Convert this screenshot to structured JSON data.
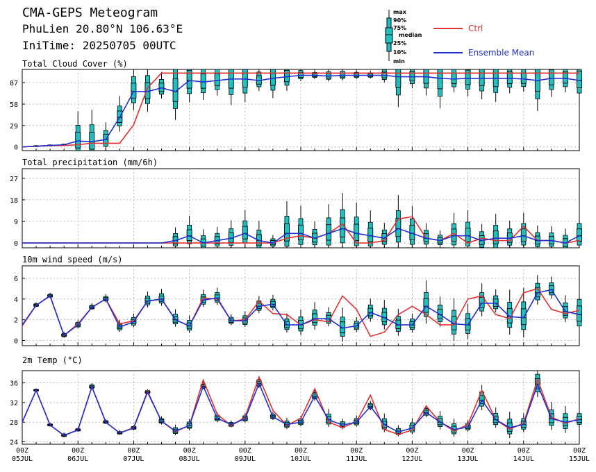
{
  "header": {
    "title": "CMA-GEPS Meteogram",
    "location": "PhuLien 20.80°N 106.63°E",
    "init_time": "IniTime: 20250705 00UTC"
  },
  "legend": {
    "box_labels": [
      "max",
      "90%",
      "75%",
      "median",
      "25%",
      "10%",
      "min"
    ],
    "ctrl_label": "Ctrl",
    "mean_label": "Ensemble Mean",
    "ctrl_color": "#e03030",
    "mean_color": "#2030d0",
    "box_fill": "#20c0c0"
  },
  "x_axis": {
    "tick_labels": [
      {
        "top": "00Z",
        "bottom": "05JUL"
      },
      {
        "top": "00Z",
        "bottom": "06JUL"
      },
      {
        "top": "00Z",
        "bottom": "07JUL"
      },
      {
        "top": "00Z",
        "bottom": "08JUL"
      },
      {
        "top": "00Z",
        "bottom": "09JUL"
      },
      {
        "top": "00Z",
        "bottom": "10JUL"
      },
      {
        "top": "00Z",
        "bottom": "11JUL"
      },
      {
        "top": "00Z",
        "bottom": "12JUL"
      },
      {
        "top": "00Z",
        "bottom": "13JUL"
      },
      {
        "top": "00Z",
        "bottom": "14JUL"
      },
      {
        "top": "00Z",
        "bottom": "15JUL"
      }
    ]
  },
  "chart_data": [
    {
      "type": "line",
      "title": "Total Cloud Cover (%)",
      "step_hours": 6,
      "ylim": [
        -5,
        105
      ],
      "yticks": [
        0,
        29,
        58,
        87
      ],
      "grid": true,
      "series": [
        {
          "name": "Ctrl",
          "values": [
            0,
            1,
            2,
            2,
            3,
            5,
            5,
            5,
            30,
            80,
            100,
            100,
            100,
            100,
            100,
            100,
            100,
            100,
            100,
            100,
            100,
            100,
            100,
            100,
            100,
            100,
            100,
            100,
            100,
            100,
            100,
            100,
            100,
            100,
            100,
            100,
            100,
            100,
            100,
            100,
            100
          ]
        },
        {
          "name": "Ensemble Mean",
          "values": [
            0,
            1,
            2,
            3,
            8,
            7,
            10,
            40,
            75,
            75,
            80,
            75,
            90,
            88,
            90,
            92,
            92,
            90,
            93,
            95,
            97,
            97,
            96,
            97,
            97,
            97,
            97,
            95,
            95,
            95,
            93,
            92,
            93,
            93,
            93,
            93,
            92,
            90,
            93,
            93,
            90
          ]
        }
      ]
    },
    {
      "type": "line",
      "title": "Total precipitation (mm/6h)",
      "step_hours": 6,
      "ylim": [
        -2,
        31
      ],
      "yticks": [
        0,
        9,
        18,
        27
      ],
      "grid": true,
      "series": [
        {
          "name": "Ctrl",
          "values": [
            0,
            0,
            0,
            0,
            0,
            0,
            0,
            0,
            0,
            0,
            0,
            0,
            0,
            0,
            0,
            0,
            0,
            0,
            0,
            2,
            3,
            2,
            4,
            8,
            0,
            0,
            1,
            10,
            11,
            2,
            1,
            4,
            0,
            2,
            1,
            1,
            7,
            1,
            1,
            0,
            1
          ]
        },
        {
          "name": "Ensemble Mean",
          "values": [
            0,
            0,
            0,
            0,
            0,
            0,
            0,
            0,
            0,
            0,
            0,
            1,
            3,
            0,
            1,
            2,
            4,
            1,
            0,
            4,
            4,
            2,
            4,
            6,
            4,
            3,
            2,
            6,
            4,
            2,
            1,
            3,
            3,
            1,
            2,
            2,
            3,
            1,
            1,
            0,
            3
          ]
        }
      ]
    },
    {
      "type": "line",
      "title": "10m wind speed (m/s)",
      "step_hours": 6,
      "ylim": [
        -0.5,
        7.2
      ],
      "yticks": [
        0,
        2,
        4,
        6
      ],
      "grid": true,
      "series": [
        {
          "name": "Ctrl",
          "values": [
            1.4,
            3.4,
            4.3,
            0.5,
            1.6,
            3.2,
            4.0,
            1.6,
            1.9,
            3.8,
            4.0,
            2.0,
            1.4,
            4.1,
            4.0,
            1.9,
            2.0,
            3.8,
            2.6,
            2.5,
            1.5,
            2.0,
            1.8,
            4.3,
            3.0,
            0.4,
            0.8,
            2.5,
            3.3,
            2.5,
            1.5,
            1.5,
            4.0,
            4.3,
            2.5,
            2.1,
            4.6,
            5.0,
            3.0,
            2.6,
            2.9
          ]
        },
        {
          "name": "Ensemble Mean",
          "values": [
            1.5,
            3.4,
            4.3,
            0.5,
            1.5,
            3.2,
            4.0,
            1.3,
            1.8,
            3.8,
            4.0,
            2.0,
            1.4,
            3.9,
            4.1,
            1.9,
            1.9,
            3.3,
            3.5,
            1.5,
            1.5,
            2.1,
            2.1,
            1.2,
            1.4,
            2.7,
            2.2,
            1.5,
            1.5,
            3.3,
            2.5,
            1.6,
            1.5,
            3.6,
            3.6,
            2.3,
            2.2,
            4.6,
            4.9,
            2.8,
            2.5
          ]
        }
      ]
    },
    {
      "type": "line",
      "title": "2m Temp (°C)",
      "step_hours": 6,
      "ylim": [
        23.5,
        38.5
      ],
      "yticks": [
        24,
        28,
        32,
        36
      ],
      "grid": true,
      "series": [
        {
          "name": "Ctrl",
          "values": [
            28.0,
            34.5,
            27.4,
            25.3,
            26.4,
            35.2,
            28.0,
            25.8,
            26.9,
            34.3,
            28.2,
            26.1,
            27.3,
            36.6,
            29.6,
            27.3,
            29.0,
            37.2,
            30.4,
            27.3,
            28.8,
            34.8,
            28.0,
            26.9,
            28.1,
            33.5,
            26.5,
            25.5,
            26.4,
            31.3,
            28.0,
            26.2,
            27.5,
            34.5,
            28.5,
            26.6,
            27.8,
            36.7,
            29.0,
            27.8,
            28.7
          ]
        },
        {
          "name": "Ensemble Mean",
          "values": [
            28.0,
            34.5,
            27.4,
            25.3,
            26.4,
            35.2,
            28.0,
            25.8,
            26.8,
            34.1,
            28.2,
            26.2,
            27.3,
            35.3,
            28.8,
            27.5,
            28.7,
            35.9,
            29.1,
            27.5,
            28.0,
            33.3,
            28.5,
            27.4,
            28.0,
            31.2,
            27.5,
            26.0,
            26.8,
            30.0,
            28.0,
            26.5,
            27.0,
            32.5,
            28.5,
            26.9,
            27.5,
            35.7,
            28.7,
            28.0,
            28.5
          ]
        }
      ]
    }
  ]
}
